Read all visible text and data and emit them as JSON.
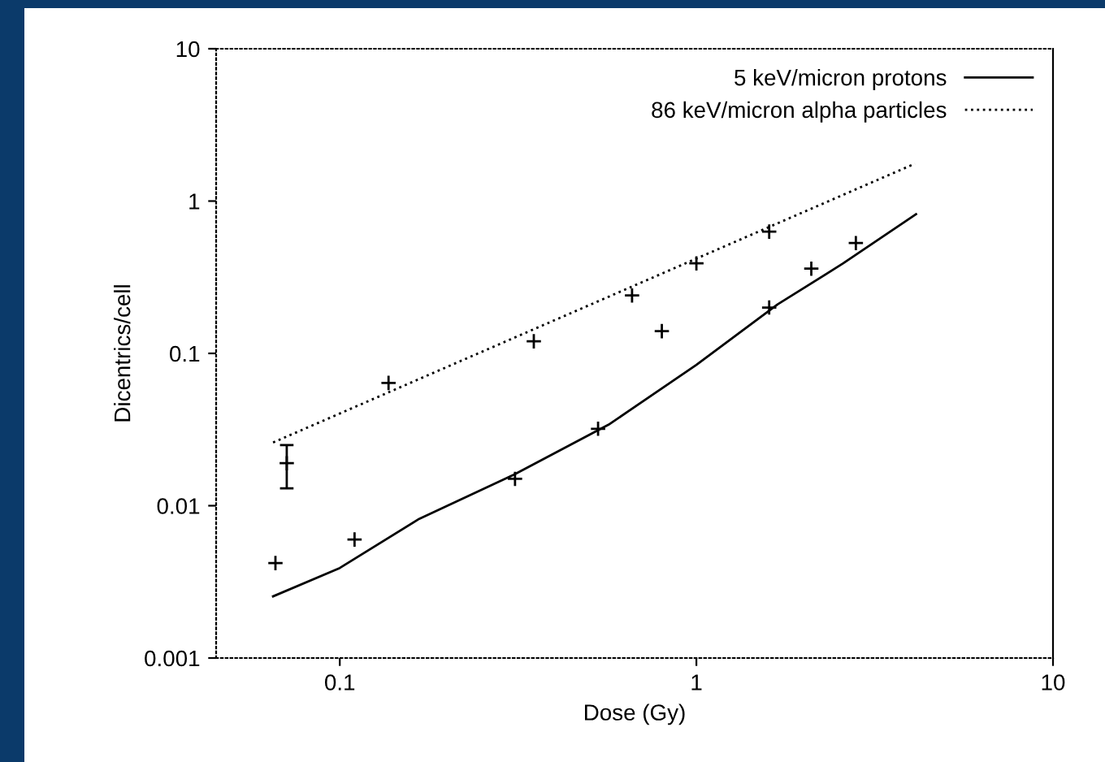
{
  "chart_data": {
    "type": "line",
    "xlabel": "Dose (Gy)",
    "ylabel": "Dicentrics/cell",
    "log": "xy",
    "xlim": [
      0.045,
      10
    ],
    "xticks": [
      0.1,
      1,
      10
    ],
    "ylim": [
      0.001,
      10
    ],
    "yticks": [
      0.001,
      0.01,
      0.1,
      1,
      10
    ],
    "grid": false,
    "legend": "top right",
    "series": [
      {
        "name": "5 keV/micron protons",
        "color": "#000000",
        "line_style": "solid",
        "x": [
          0.065,
          0.1,
          0.167,
          0.308,
          0.567,
          1,
          1.69,
          2.58,
          4.13
        ],
        "values": [
          0.00254,
          0.0039,
          0.0082,
          0.016,
          0.034,
          0.084,
          0.21,
          0.39,
          0.82
        ]
      },
      {
        "name": "86 keV/micron alpha particles",
        "color": "#000000",
        "line_style": "dotted",
        "x": [
          0.065,
          4.1
        ],
        "values": [
          0.026,
          1.76
        ]
      },
      {
        "type": "scatter",
        "color": "#000000",
        "marker": "cross",
        "x": [
          0.066,
          0.11,
          0.31,
          0.53,
          0.8,
          1.6,
          2.1,
          2.8
        ],
        "values": [
          0.0042,
          0.006,
          0.015,
          0.032,
          0.14,
          0.2,
          0.36,
          0.53
        ]
      },
      {
        "type": "scatter",
        "color": "#000000",
        "marker": "cross",
        "x": [
          0.071,
          0.137,
          0.35,
          0.66,
          1,
          1.6
        ],
        "values": [
          0.019,
          0.064,
          0.12,
          0.24,
          0.39,
          0.63
        ],
        "errors": [
          [
            0.013,
            0.025
          ],
          null,
          null,
          null,
          null,
          null
        ]
      }
    ]
  }
}
